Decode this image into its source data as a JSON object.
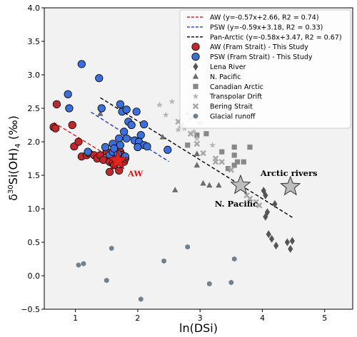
{
  "chart_data": {
    "type": "scatter",
    "xlabel": "ln(DSi)",
    "ylabel": "δ30Si(OH)4 (‰)",
    "xlim": [
      0.5,
      5.45
    ],
    "ylim": [
      -0.5,
      4.0
    ],
    "xticks": [
      "1",
      "2",
      "3",
      "4",
      "5"
    ],
    "yticks": [
      "−0.5",
      "0.0",
      "0.5",
      "1.0",
      "1.5",
      "2.0",
      "2.5",
      "3.0",
      "3.5",
      "4.0"
    ],
    "grid": false,
    "legend_position": "top-right",
    "colors": {
      "aw": "#c0282b",
      "psw": "#3b6fd9",
      "lena": "#555555",
      "npacific": "#6b6b6b",
      "canadian": "#888888",
      "transpolar": "#b5b5b5",
      "bering": "#a6a6a6",
      "glacial": "#6e8190",
      "aw_line": "#e02020",
      "psw_line": "#1f3fcf",
      "pan_line": "#000000",
      "background": "#f2f2f2"
    },
    "regressions": [
      {
        "key": "aw",
        "label": "AW (y=-0.57x+2.66, R2 = 0.74)",
        "slope": -0.57,
        "intercept": 2.66,
        "x_range": [
          0.65,
          1.7
        ]
      },
      {
        "key": "psw",
        "label": "PSW (y=-0.59x+3.18, R2 = 0.33)",
        "slope": -0.59,
        "intercept": 3.18,
        "x_range": [
          1.25,
          2.5
        ]
      },
      {
        "key": "pan",
        "label": "Pan-Arctic (y=-0.58x+3.47, R2 = 0.67)",
        "slope": -0.58,
        "intercept": 3.47,
        "x_range": [
          1.4,
          4.5
        ]
      }
    ],
    "series": [
      {
        "key": "aw",
        "name": "AW (Fram Strait) - This Study",
        "marker": "circle",
        "points": [
          [
            0.65,
            2.22
          ],
          [
            0.7,
            2.56
          ],
          [
            0.68,
            2.2
          ],
          [
            0.95,
            2.25
          ],
          [
            0.98,
            1.93
          ],
          [
            1.05,
            2.0
          ],
          [
            1.1,
            1.78
          ],
          [
            1.18,
            1.8
          ],
          [
            1.22,
            1.83
          ],
          [
            1.3,
            1.8
          ],
          [
            1.35,
            1.75
          ],
          [
            1.4,
            1.8
          ],
          [
            1.45,
            1.73
          ],
          [
            1.5,
            1.85
          ],
          [
            1.55,
            1.7
          ],
          [
            1.6,
            1.68
          ],
          [
            1.55,
            1.55
          ],
          [
            1.62,
            1.65
          ],
          [
            1.65,
            1.9
          ],
          [
            1.7,
            1.72
          ],
          [
            1.7,
            1.57
          ],
          [
            1.72,
            1.85
          ],
          [
            1.75,
            1.8
          ],
          [
            1.78,
            1.7
          ],
          [
            1.8,
            1.75
          ]
        ]
      },
      {
        "key": "psw",
        "name": "PSW (Fram Strait) - This Study",
        "marker": "circle",
        "points": [
          [
            1.1,
            3.16
          ],
          [
            1.38,
            2.95
          ],
          [
            0.88,
            2.71
          ],
          [
            0.9,
            2.5
          ],
          [
            1.42,
            2.5
          ],
          [
            1.72,
            2.56
          ],
          [
            1.75,
            2.45
          ],
          [
            1.82,
            2.48
          ],
          [
            1.98,
            2.45
          ],
          [
            1.85,
            2.3
          ],
          [
            1.9,
            2.25
          ],
          [
            2.1,
            2.26
          ],
          [
            1.78,
            2.15
          ],
          [
            1.82,
            2.05
          ],
          [
            1.95,
            2.02
          ],
          [
            2.05,
            2.1
          ],
          [
            2.02,
            2.0
          ],
          [
            1.6,
            1.97
          ],
          [
            1.7,
            2.05
          ],
          [
            1.72,
            1.95
          ],
          [
            2.1,
            1.95
          ],
          [
            2.15,
            1.93
          ],
          [
            1.48,
            1.92
          ],
          [
            1.55,
            1.8
          ],
          [
            1.6,
            1.85
          ],
          [
            1.65,
            1.75
          ],
          [
            1.68,
            1.82
          ],
          [
            1.8,
            1.78
          ],
          [
            2.0,
            1.92
          ],
          [
            2.48,
            1.88
          ],
          [
            1.2,
            1.85
          ],
          [
            1.62,
            1.9
          ]
        ]
      },
      {
        "key": "lena",
        "name": "Lena River",
        "marker": "diamond",
        "points": [
          [
            4.02,
            1.27
          ],
          [
            4.08,
            0.95
          ],
          [
            4.05,
            0.88
          ],
          [
            4.1,
            0.62
          ],
          [
            4.15,
            0.55
          ],
          [
            4.22,
            0.45
          ],
          [
            4.4,
            0.5
          ],
          [
            4.45,
            0.4
          ],
          [
            4.48,
            0.52
          ],
          [
            4.2,
            1.07
          ],
          [
            4.05,
            1.2
          ]
        ]
      },
      {
        "key": "npacific",
        "name": "N. Pacific",
        "marker": "triangle",
        "points": [
          [
            1.4,
            2.42
          ],
          [
            2.4,
            2.07
          ],
          [
            2.6,
            1.28
          ],
          [
            2.95,
            1.82
          ],
          [
            3.05,
            1.38
          ],
          [
            3.15,
            1.35
          ],
          [
            2.95,
            1.65
          ],
          [
            3.3,
            1.35
          ]
        ]
      },
      {
        "key": "canadian",
        "name": "Canadian Arctic",
        "marker": "square",
        "points": [
          [
            2.95,
            2.1
          ],
          [
            3.1,
            2.12
          ],
          [
            2.8,
            1.95
          ],
          [
            3.35,
            1.85
          ],
          [
            3.55,
            1.8
          ],
          [
            3.55,
            1.92
          ],
          [
            3.8,
            1.92
          ],
          [
            3.55,
            1.65
          ],
          [
            3.7,
            1.7
          ],
          [
            3.45,
            1.6
          ],
          [
            3.6,
            1.7
          ]
        ]
      },
      {
        "key": "transpolar",
        "name": "Transpolar Drift",
        "marker": "star",
        "points": [
          [
            2.55,
            2.6
          ],
          [
            2.8,
            2.42
          ],
          [
            2.75,
            2.2
          ],
          [
            2.85,
            2.35
          ],
          [
            3.0,
            2.28
          ],
          [
            2.9,
            2.15
          ],
          [
            2.65,
            2.18
          ],
          [
            2.35,
            2.55
          ],
          [
            2.45,
            2.4
          ],
          [
            2.95,
            2.05
          ],
          [
            3.2,
            1.95
          ]
        ]
      },
      {
        "key": "bering",
        "name": "Bering Strait",
        "marker": "x",
        "points": [
          [
            2.65,
            2.3
          ],
          [
            2.7,
            2.25
          ],
          [
            2.85,
            2.12
          ],
          [
            2.95,
            1.97
          ],
          [
            3.05,
            1.83
          ],
          [
            3.25,
            1.75
          ],
          [
            3.35,
            1.7
          ],
          [
            3.5,
            1.58
          ],
          [
            3.75,
            1.2
          ],
          [
            3.8,
            1.15
          ],
          [
            3.9,
            1.1
          ],
          [
            3.95,
            1.05
          ],
          [
            3.25,
            1.7
          ]
        ]
      },
      {
        "key": "glacial",
        "name": "Glacial runoff",
        "marker": "hexagon",
        "points": [
          [
            1.05,
            0.16
          ],
          [
            1.13,
            0.18
          ],
          [
            1.5,
            -0.07
          ],
          [
            1.58,
            0.41
          ],
          [
            2.05,
            -0.35
          ],
          [
            2.42,
            0.22
          ],
          [
            2.8,
            0.43
          ],
          [
            3.15,
            -0.12
          ],
          [
            3.5,
            -0.1
          ],
          [
            3.55,
            0.25
          ]
        ]
      }
    ],
    "highlights": [
      {
        "key": "aw_star",
        "label": "AW",
        "x": 1.68,
        "y": 1.72
      },
      {
        "key": "np_star",
        "label": "N. Pacific",
        "x": 3.65,
        "y": 1.35
      },
      {
        "key": "ar_star",
        "label": "Arctic rivers",
        "x": 4.45,
        "y": 1.33
      }
    ]
  }
}
